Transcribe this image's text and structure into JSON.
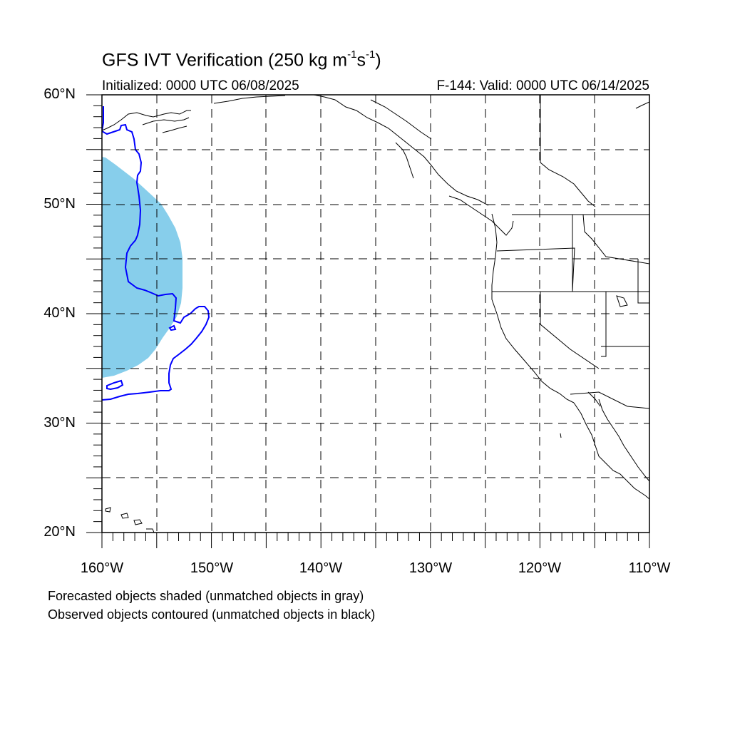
{
  "header": {
    "title_main": "GFS IVT Verification (250 kg m",
    "title_exp1": "-1",
    "title_mid": "s",
    "title_exp2": "-1",
    "title_end": ")",
    "initialized": "Initialized: 0000 UTC 06/08/2025",
    "valid": "F-144: Valid: 0000 UTC 06/14/2025"
  },
  "map": {
    "projection": "cylindrical-equidistant",
    "lon_range": [
      -160,
      -110
    ],
    "lat_range": [
      20,
      60
    ],
    "grid_lines": "dashed",
    "lat_labels": [
      "60°N",
      "50°N",
      "40°N",
      "30°N",
      "20°N"
    ],
    "lon_labels": [
      "160°W",
      "150°W",
      "140°W",
      "130°W",
      "120°W",
      "110°W"
    ],
    "colors": {
      "forecast_fill": "#87ceeb",
      "observed_contour": "#0000ff",
      "coastline": "#000000",
      "grid": "#000000"
    }
  },
  "objects": {
    "forecast": {
      "description_shape": "shaded region west of ~153°W between ~34°N and ~54.5°N",
      "approx_extent": {
        "lon": [
          -160,
          -152.9
        ],
        "lat": [
          34.2,
          54.5
        ]
      }
    },
    "observed": {
      "description_shape": "blue contour from ~59°N at 160°W south-east to ~40°N, 150°W and back to ~32°N at 160°W",
      "approx_extent": {
        "lon": [
          -160,
          -150
        ],
        "lat": [
          32.1,
          59.3
        ]
      }
    }
  },
  "legend": {
    "line1": "Forecasted objects shaded (unmatched objects in gray)",
    "line2": "Observed objects contoured (unmatched objects in black)"
  }
}
